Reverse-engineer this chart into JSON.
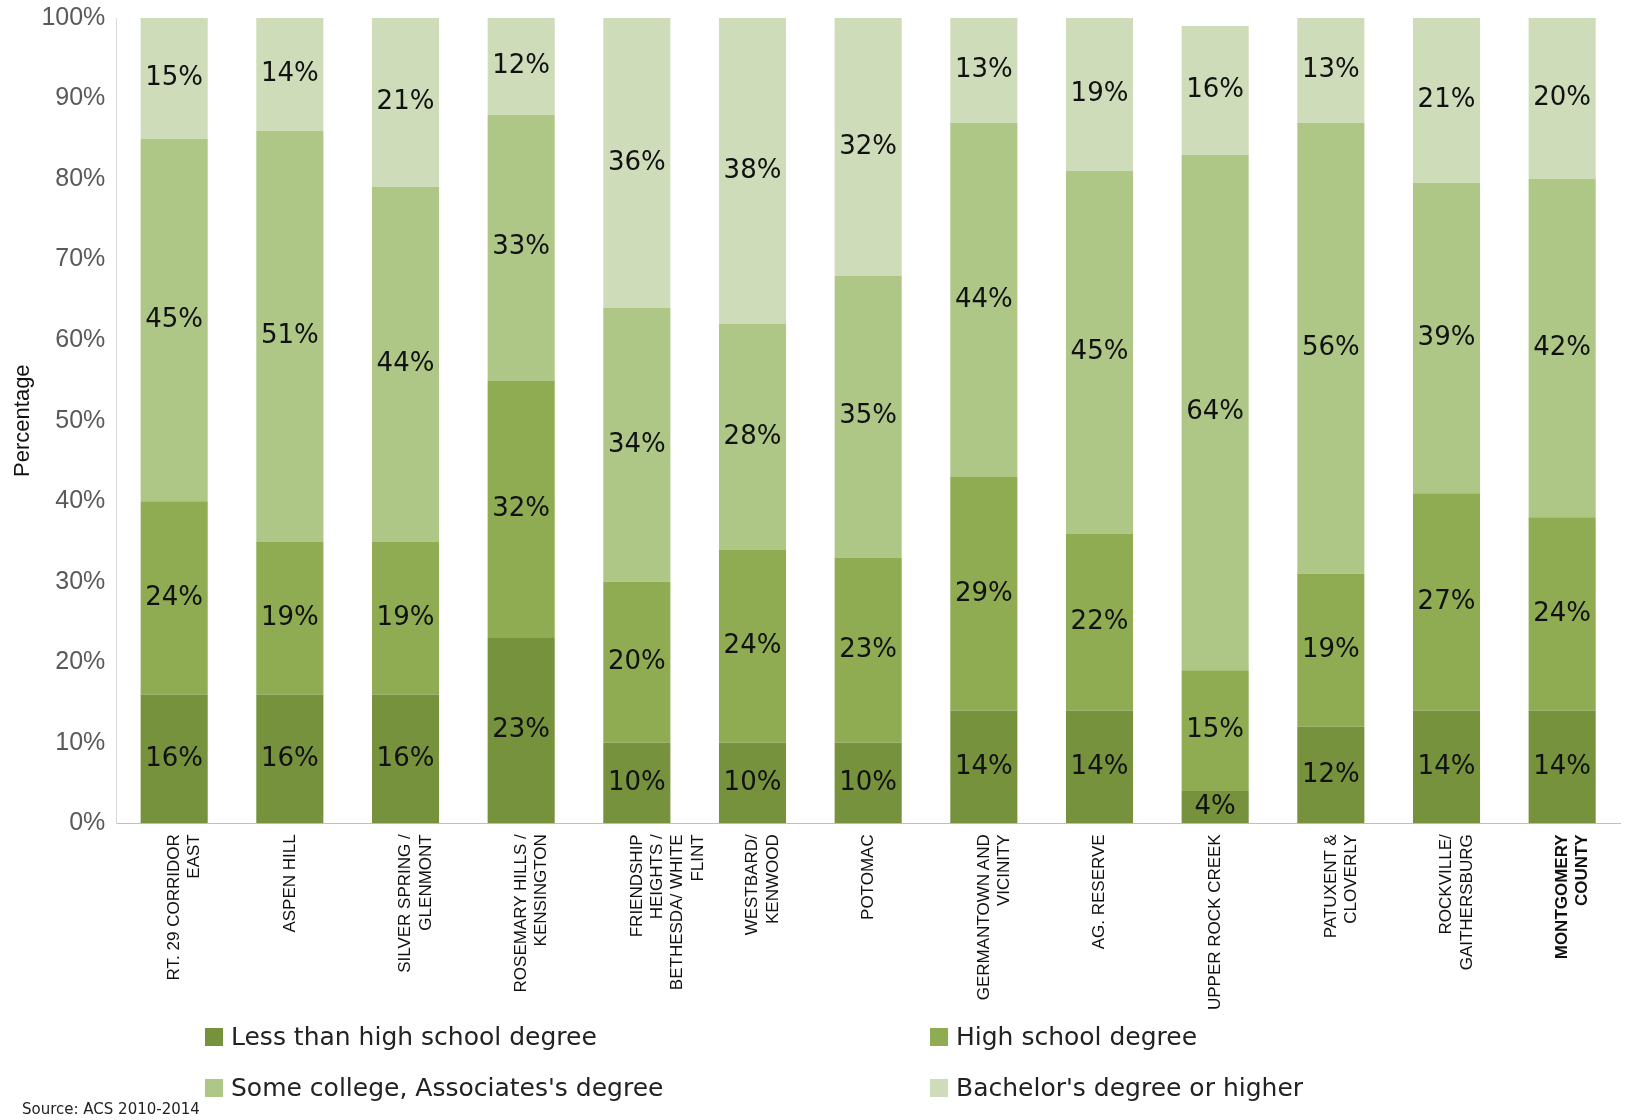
{
  "chart_data": {
    "type": "bar",
    "stacked": true,
    "ylabel": "Percentage",
    "categories": [
      "RT. 29 CORRIDOR EAST",
      "ASPEN HILL",
      "SILVER SPRING / GLENMONT",
      "ROSEMARY HILLS / KENSINGTON",
      "FRIENDSHIP HEIGHTS / BETHESDA/ WHITE FLINT",
      "WESTBARD/ KENWOOD",
      "POTOMAC",
      "GERMANTOWN AND VICINITY",
      "AG. RESERVE",
      "UPPER ROCK CREEK",
      "PATUXENT & CLOVERLY",
      "ROCKVILLE/ GAITHERSBURG",
      "MONTGOMERY COUNTY"
    ],
    "series": [
      {
        "name": "Less than high school degree",
        "color": "#77923c",
        "values": [
          16,
          16,
          16,
          23,
          10,
          10,
          10,
          14,
          14,
          4,
          12,
          14,
          14
        ],
        "value_labels": [
          "16%",
          "16%",
          "16%",
          "23%",
          "10%",
          "10%",
          "10%",
          "14%",
          "14%",
          "4%",
          "12%",
          "14%",
          "14%"
        ]
      },
      {
        "name": "High school degree",
        "color": "#8fac52",
        "values": [
          24,
          19,
          19,
          32,
          20,
          24,
          23,
          29,
          22,
          15,
          19,
          27,
          24
        ],
        "value_labels": [
          "24%",
          "19%",
          "19%",
          "32%",
          "20%",
          "24%",
          "23%",
          "29%",
          "22%",
          "15%",
          "19%",
          "27%",
          "24%"
        ]
      },
      {
        "name": "Some college, Associates's degree",
        "color": "#afc786",
        "values": [
          45,
          51,
          44,
          33,
          34,
          28,
          35,
          44,
          45,
          64,
          56,
          38.5,
          42
        ],
        "value_labels": [
          "45%",
          "51%",
          "44%",
          "33%",
          "34%",
          "28%",
          "35%",
          "44%",
          "45%",
          "64%",
          "56%",
          "39%",
          "42%"
        ]
      },
      {
        "name": "Bachelor's degree or higher",
        "color": "#cfdcb9",
        "values": [
          15,
          14,
          21,
          12,
          36,
          38,
          32,
          13,
          19,
          16,
          13,
          20.5,
          20
        ],
        "value_labels": [
          "15%",
          "14%",
          "21%",
          "12%",
          "36%",
          "38%",
          "32%",
          "13%",
          "19%",
          "16%",
          "13%",
          "21%",
          "20%"
        ]
      }
    ],
    "ylim": [
      0,
      100
    ],
    "yticks": [
      {
        "value": 0,
        "label": "0%"
      },
      {
        "value": 10,
        "label": "10%"
      },
      {
        "value": 20,
        "label": "20%"
      },
      {
        "value": 30,
        "label": "30%"
      },
      {
        "value": 40,
        "label": "40%"
      },
      {
        "value": 50,
        "label": "50%"
      },
      {
        "value": 60,
        "label": "60%"
      },
      {
        "value": 70,
        "label": "70%"
      },
      {
        "value": 80,
        "label": "80%"
      },
      {
        "value": 90,
        "label": "90%"
      },
      {
        "value": 100,
        "label": "100%"
      }
    ],
    "grid": false,
    "legend": "bottom",
    "annotations": [
      "Source: ACS 2010-2014"
    ]
  }
}
